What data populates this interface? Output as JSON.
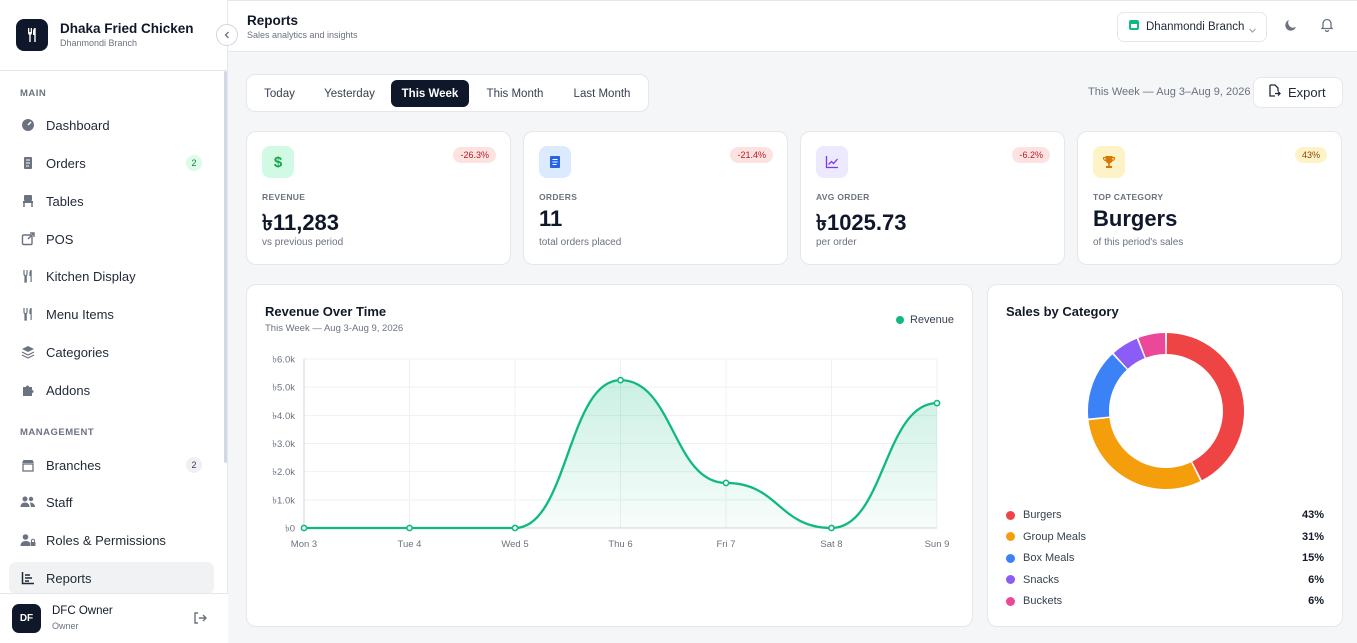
{
  "brand": {
    "name": "Dhaka Fried Chicken",
    "branch": "Dhanmondi Branch"
  },
  "sidebar": {
    "section_main": "MAIN",
    "section_management": "MANAGEMENT",
    "items": [
      {
        "label": "Dashboard"
      },
      {
        "label": "Orders",
        "badge": "2"
      },
      {
        "label": "Tables"
      },
      {
        "label": "POS"
      },
      {
        "label": "Kitchen Display"
      },
      {
        "label": "Menu Items"
      },
      {
        "label": "Categories"
      },
      {
        "label": "Addons"
      },
      {
        "label": "Branches",
        "badge": "2"
      },
      {
        "label": "Staff"
      },
      {
        "label": "Roles & Permissions"
      },
      {
        "label": "Reports"
      }
    ]
  },
  "user": {
    "initials": "DF",
    "name": "DFC Owner",
    "role": "Owner"
  },
  "header": {
    "title": "Reports",
    "subtitle": "Sales analytics and insights",
    "branch_select": "Dhanmondi Branch"
  },
  "tabs": [
    "Today",
    "Yesterday",
    "This Week",
    "This Month",
    "Last Month"
  ],
  "active_tab": "This Week",
  "range_text": "This Week — Aug 3–Aug 9, 2026",
  "export_label": "Export",
  "kpis": [
    {
      "label": "REVENUE",
      "value": "৳11,283",
      "sub": "vs previous period",
      "badge": "-26.3%",
      "icon": "dollar-icon",
      "color": "#16a34a"
    },
    {
      "label": "ORDERS",
      "value": "11",
      "sub": "total orders placed",
      "badge": "-21.4%",
      "icon": "receipt-icon",
      "color": "#2563eb"
    },
    {
      "label": "AVG ORDER",
      "value": "৳1025.73",
      "sub": "per order",
      "badge": "-6.2%",
      "icon": "trend-icon",
      "color": "#7c3aed"
    },
    {
      "label": "TOP CATEGORY",
      "value": "Burgers",
      "sub": "of this period's sales",
      "badge": "43%",
      "icon": "trophy-icon",
      "color": "#d97706"
    }
  ],
  "revenue_card": {
    "title": "Revenue Over Time",
    "subtitle": "This Week — Aug 3-Aug 9, 2026",
    "legend": "Revenue"
  },
  "category_card": {
    "title": "Sales by Category"
  },
  "chart_data": [
    {
      "type": "area",
      "title": "Revenue Over Time",
      "categories": [
        "Mon 3",
        "Tue 4",
        "Wed 5",
        "Thu 6",
        "Fri 7",
        "Sat 8",
        "Sun 9"
      ],
      "series": [
        {
          "name": "Revenue",
          "values": [
            0,
            0,
            0,
            5250,
            1600,
            0,
            4433
          ],
          "color": "#10b981"
        }
      ],
      "yticks": [
        "৳0",
        "৳1.0k",
        "৳2.0k",
        "৳3.0k",
        "৳4.0k",
        "৳5.0k",
        "৳6.0k"
      ],
      "ylim": [
        0,
        6000
      ],
      "grid": true
    },
    {
      "type": "pie",
      "title": "Sales by Category",
      "categories": [
        "Burgers",
        "Group Meals",
        "Box Meals",
        "Snacks",
        "Buckets"
      ],
      "values": [
        43,
        31,
        15,
        6,
        6
      ],
      "labels": [
        "43%",
        "31%",
        "15%",
        "6%",
        "6%"
      ],
      "colors": [
        "#ef4444",
        "#f59e0b",
        "#3b82f6",
        "#8b5cf6",
        "#ec4899"
      ]
    }
  ]
}
